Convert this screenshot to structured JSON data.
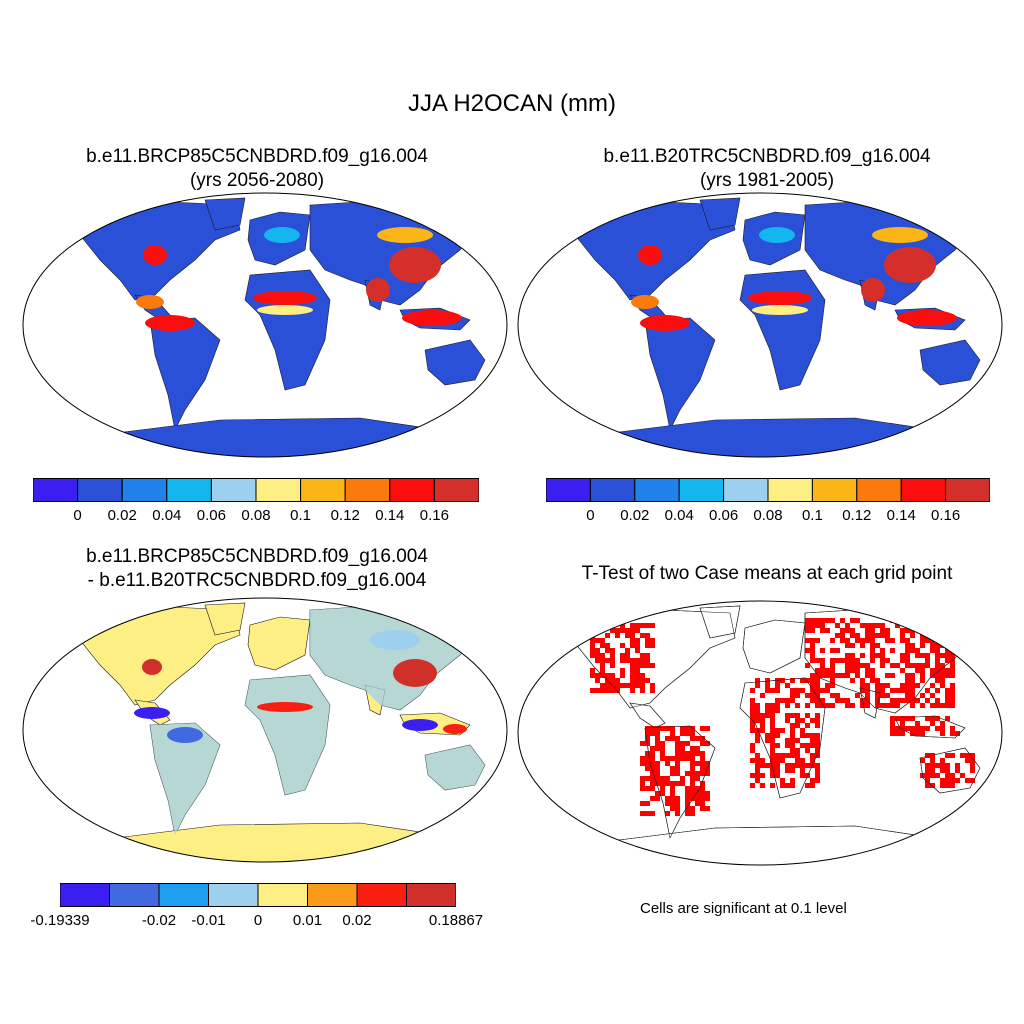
{
  "main_title": "JJA H2OCAN (mm)",
  "panels": {
    "p1": {
      "title1": "b.e11.BRCP85C5CNBDRD.f09_g16.004",
      "title2": "(yrs 2056-2080)"
    },
    "p2": {
      "title1": "b.e11.B20TRC5CNBDRD.f09_g16.004",
      "title2": "(yrs 1981-2005)"
    },
    "p3": {
      "title1": "b.e11.BRCP85C5CNBDRD.f09_g16.004",
      "title2": "- b.e11.B20TRC5CNBDRD.f09_g16.004"
    },
    "p4": {
      "title1": "T-Test of two Case means at each grid point",
      "note": "Cells are significant at 0.1 level"
    }
  },
  "colorbar_top": {
    "colors": [
      "#3b1ff0",
      "#2b50d8",
      "#2081eb",
      "#14b6f0",
      "#9dcfee",
      "#fdef84",
      "#fbb516",
      "#fb7a0c",
      "#f90d0d",
      "#d42f2a"
    ],
    "labels": [
      "0",
      "0.02",
      "0.04",
      "0.06",
      "0.08",
      "0.1",
      "0.12",
      "0.14",
      "0.16"
    ]
  },
  "colorbar_diff": {
    "colors": [
      "#3b1ff0",
      "#3f6ae0",
      "#1e9ef0",
      "#9dcfee",
      "#fdef84",
      "#fb9a1a",
      "#f91f10",
      "#d02f2a"
    ],
    "labels": [
      "-0.19339",
      "-0.02",
      "-0.01",
      "0",
      "0.01",
      "0.02",
      "0.18867"
    ]
  },
  "significance_color": "#ff0000"
}
